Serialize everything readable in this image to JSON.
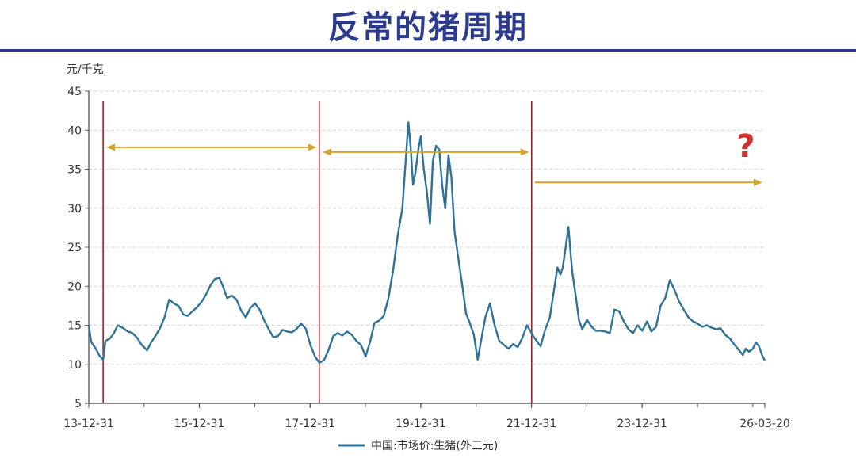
{
  "title": "反常的猪周期",
  "chart_data": {
    "type": "line",
    "ylabel": "元/千克",
    "ylim": [
      5,
      45
    ],
    "yticks": [
      5,
      10,
      15,
      20,
      25,
      30,
      35,
      40,
      45
    ],
    "xlim": [
      "2013-12-31",
      "2026-03-20"
    ],
    "xticks": [
      {
        "date": "2013-12-31",
        "label": "13-12-31"
      },
      {
        "date": "2015-12-31",
        "label": "15-12-31"
      },
      {
        "date": "2017-12-31",
        "label": "17-12-31"
      },
      {
        "date": "2019-12-31",
        "label": "19-12-31"
      },
      {
        "date": "2021-12-31",
        "label": "21-12-31"
      },
      {
        "date": "2023-12-31",
        "label": "23-12-31"
      },
      {
        "date": "2026-03-20",
        "label": "26-03-20"
      }
    ],
    "grid": "horizontal-dashed",
    "legend_placement": "bottom",
    "series": [
      {
        "name": "中国:市场价:生猪(外三元)",
        "color": "#2e7299",
        "points": [
          [
            "2013-12-31",
            15.0
          ],
          [
            "2014-01-15",
            12.9
          ],
          [
            "2014-02-15",
            12.0
          ],
          [
            "2014-03-15",
            11.0
          ],
          [
            "2014-04-05",
            10.6
          ],
          [
            "2014-04-20",
            13.0
          ],
          [
            "2014-05-20",
            13.3
          ],
          [
            "2014-06-15",
            14.0
          ],
          [
            "2014-07-10",
            15.0
          ],
          [
            "2014-08-10",
            14.7
          ],
          [
            "2014-09-15",
            14.2
          ],
          [
            "2014-10-15",
            14.0
          ],
          [
            "2014-11-15",
            13.4
          ],
          [
            "2014-12-15",
            12.5
          ],
          [
            "2015-01-20",
            11.8
          ],
          [
            "2015-02-15",
            12.8
          ],
          [
            "2015-03-15",
            13.6
          ],
          [
            "2015-04-15",
            14.6
          ],
          [
            "2015-05-15",
            16.0
          ],
          [
            "2015-06-15",
            18.3
          ],
          [
            "2015-07-15",
            17.8
          ],
          [
            "2015-08-15",
            17.5
          ],
          [
            "2015-09-15",
            16.4
          ],
          [
            "2015-10-15",
            16.2
          ],
          [
            "2015-11-15",
            16.8
          ],
          [
            "2015-12-15",
            17.3
          ],
          [
            "2016-01-15",
            18.0
          ],
          [
            "2016-02-15",
            19.0
          ],
          [
            "2016-03-15",
            20.2
          ],
          [
            "2016-04-10",
            20.9
          ],
          [
            "2016-05-10",
            21.1
          ],
          [
            "2016-06-01",
            20.1
          ],
          [
            "2016-07-01",
            18.5
          ],
          [
            "2016-08-01",
            18.8
          ],
          [
            "2016-09-01",
            18.3
          ],
          [
            "2016-10-01",
            16.9
          ],
          [
            "2016-11-01",
            16.0
          ],
          [
            "2016-12-01",
            17.2
          ],
          [
            "2017-01-01",
            17.8
          ],
          [
            "2017-02-01",
            17.0
          ],
          [
            "2017-03-01",
            15.7
          ],
          [
            "2017-04-01",
            14.5
          ],
          [
            "2017-05-01",
            13.5
          ],
          [
            "2017-06-01",
            13.6
          ],
          [
            "2017-07-01",
            14.4
          ],
          [
            "2017-08-01",
            14.2
          ],
          [
            "2017-09-01",
            14.1
          ],
          [
            "2017-10-01",
            14.5
          ],
          [
            "2017-11-01",
            15.2
          ],
          [
            "2017-12-01",
            14.6
          ],
          [
            "2018-01-01",
            12.5
          ],
          [
            "2018-02-01",
            11.0
          ],
          [
            "2018-03-01",
            10.2
          ],
          [
            "2018-04-01",
            10.5
          ],
          [
            "2018-05-01",
            11.8
          ],
          [
            "2018-06-01",
            13.6
          ],
          [
            "2018-07-01",
            14.0
          ],
          [
            "2018-08-01",
            13.7
          ],
          [
            "2018-09-01",
            14.2
          ],
          [
            "2018-10-01",
            13.8
          ],
          [
            "2018-11-01",
            13.0
          ],
          [
            "2018-12-01",
            12.5
          ],
          [
            "2019-01-01",
            11.0
          ],
          [
            "2019-02-01",
            13.0
          ],
          [
            "2019-03-01",
            15.3
          ],
          [
            "2019-04-01",
            15.6
          ],
          [
            "2019-05-01",
            16.2
          ],
          [
            "2019-06-01",
            18.5
          ],
          [
            "2019-07-01",
            22.0
          ],
          [
            "2019-08-01",
            26.5
          ],
          [
            "2019-09-01",
            30.0
          ],
          [
            "2019-10-10",
            41.0
          ],
          [
            "2019-10-25",
            38.0
          ],
          [
            "2019-11-10",
            33.0
          ],
          [
            "2019-11-25",
            34.5
          ],
          [
            "2019-12-15",
            37.5
          ],
          [
            "2019-12-31",
            39.2
          ],
          [
            "2020-01-20",
            35.0
          ],
          [
            "2020-02-10",
            32.0
          ],
          [
            "2020-03-01",
            28.0
          ],
          [
            "2020-03-20",
            36.0
          ],
          [
            "2020-04-10",
            38.0
          ],
          [
            "2020-05-01",
            37.5
          ],
          [
            "2020-05-20",
            33.0
          ],
          [
            "2020-06-10",
            30.0
          ],
          [
            "2020-07-01",
            36.8
          ],
          [
            "2020-07-20",
            34.0
          ],
          [
            "2020-08-10",
            27.0
          ],
          [
            "2020-09-01",
            24.0
          ],
          [
            "2020-10-01",
            20.0
          ],
          [
            "2020-10-25",
            16.5
          ],
          [
            "2020-11-15",
            15.5
          ],
          [
            "2020-12-15",
            13.8
          ],
          [
            "2021-01-10",
            10.6
          ],
          [
            "2021-02-01",
            13.0
          ],
          [
            "2021-03-01",
            16.0
          ],
          [
            "2021-04-01",
            17.8
          ],
          [
            "2021-05-01",
            15.0
          ],
          [
            "2021-06-01",
            13.0
          ],
          [
            "2021-07-01",
            12.5
          ],
          [
            "2021-08-01",
            12.0
          ],
          [
            "2021-09-01",
            12.6
          ],
          [
            "2021-10-01",
            12.2
          ],
          [
            "2021-11-01",
            13.4
          ],
          [
            "2021-12-01",
            15.0
          ],
          [
            "2022-01-15",
            13.5
          ],
          [
            "2022-03-01",
            12.3
          ],
          [
            "2022-04-01",
            14.5
          ],
          [
            "2022-05-01",
            16.0
          ],
          [
            "2022-06-01",
            20.0
          ],
          [
            "2022-06-20",
            22.4
          ],
          [
            "2022-07-10",
            21.5
          ],
          [
            "2022-07-25",
            22.4
          ],
          [
            "2022-08-10",
            24.5
          ],
          [
            "2022-09-01",
            27.6
          ],
          [
            "2022-09-25",
            22.0
          ],
          [
            "2022-10-20",
            18.6
          ],
          [
            "2022-11-10",
            15.6
          ],
          [
            "2022-12-01",
            14.5
          ],
          [
            "2023-01-01",
            15.7
          ],
          [
            "2023-02-01",
            14.8
          ],
          [
            "2023-03-01",
            14.3
          ],
          [
            "2023-04-01",
            14.3
          ],
          [
            "2023-05-01",
            14.2
          ],
          [
            "2023-06-01",
            14.0
          ],
          [
            "2023-07-01",
            17.0
          ],
          [
            "2023-08-01",
            16.8
          ],
          [
            "2023-09-01",
            15.5
          ],
          [
            "2023-10-01",
            14.5
          ],
          [
            "2023-11-01",
            14.0
          ],
          [
            "2023-12-01",
            15.0
          ],
          [
            "2024-01-01",
            14.3
          ],
          [
            "2024-02-01",
            15.5
          ],
          [
            "2024-03-01",
            14.2
          ],
          [
            "2024-04-01",
            14.8
          ],
          [
            "2024-05-01",
            17.5
          ],
          [
            "2024-06-01",
            18.5
          ],
          [
            "2024-07-01",
            20.8
          ],
          [
            "2024-08-01",
            19.5
          ],
          [
            "2024-09-01",
            18.0
          ],
          [
            "2024-10-01",
            17.0
          ],
          [
            "2024-11-01",
            16.0
          ],
          [
            "2024-12-01",
            15.5
          ],
          [
            "2025-01-01",
            15.2
          ],
          [
            "2025-02-01",
            14.8
          ],
          [
            "2025-03-01",
            15.0
          ],
          [
            "2025-04-01",
            14.7
          ],
          [
            "2025-05-01",
            14.5
          ],
          [
            "2025-06-01",
            14.6
          ],
          [
            "2025-07-01",
            13.8
          ],
          [
            "2025-08-01",
            13.3
          ],
          [
            "2025-09-01",
            12.5
          ],
          [
            "2025-10-01",
            11.8
          ],
          [
            "2025-10-25",
            11.2
          ],
          [
            "2025-11-15",
            12.0
          ],
          [
            "2025-12-05",
            11.6
          ],
          [
            "2025-12-31",
            12.0
          ],
          [
            "2026-01-20",
            12.8
          ],
          [
            "2026-02-10",
            12.3
          ],
          [
            "2026-03-01",
            11.2
          ],
          [
            "2026-03-20",
            10.5
          ]
        ]
      }
    ],
    "vlines": {
      "color": "#a31f24",
      "dates": [
        "2014-04-05",
        "2018-03-01",
        "2022-01-01"
      ]
    },
    "arrows": {
      "color": "#d4a32e",
      "items": [
        {
          "from": "2014-04-05",
          "to": "2018-03-01",
          "y": 37.8,
          "double": true
        },
        {
          "from": "2018-03-01",
          "to": "2022-01-01",
          "y": 37.2,
          "double": true
        },
        {
          "from": "2022-01-01",
          "to": "2026-03-20",
          "y": 33.3,
          "double": false
        }
      ]
    },
    "annotation": "?"
  }
}
